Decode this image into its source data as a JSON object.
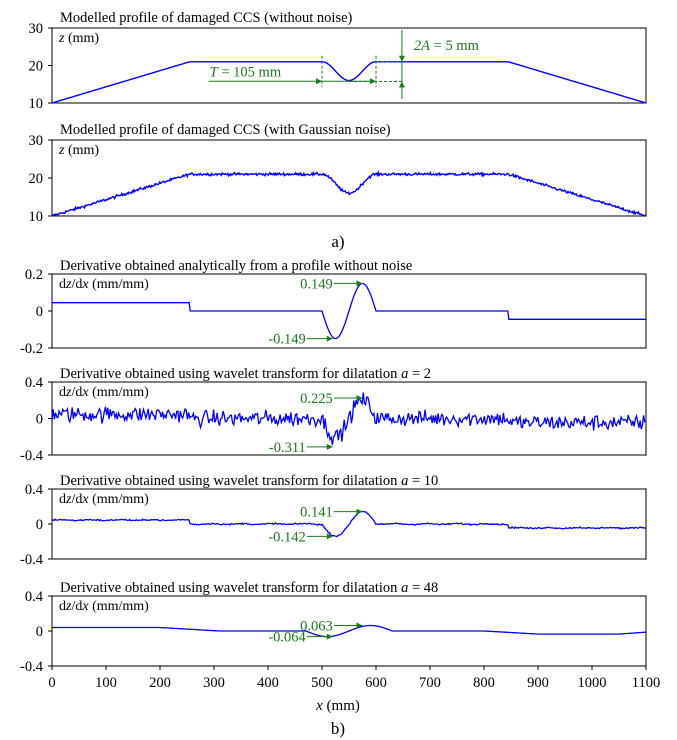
{
  "colors": {
    "curve": "#0000FF",
    "annotation": "#1A7A1A",
    "frame": "#000000"
  },
  "panel_labels": {
    "a": "a)",
    "b": "b)"
  },
  "shared_x_axis": {
    "label_italic": "x",
    "label_unit": " (mm)",
    "range": [
      0,
      1100
    ],
    "ticks": [
      "0",
      "100",
      "200",
      "300",
      "400",
      "500",
      "600",
      "700",
      "800",
      "900",
      "1000",
      "1100"
    ]
  },
  "chart_data": [
    {
      "type": "line",
      "title": "Modelled profile of damaged CCS (without noise)",
      "ylabel_italic": "z",
      "ylabel_unit": " (mm)",
      "ylim": [
        10,
        30
      ],
      "yticks": [
        "10",
        "20",
        "30"
      ],
      "xlim": [
        0,
        1100
      ],
      "noise": 0,
      "series": [
        {
          "values_kind": "profile",
          "x": [
            0,
            255,
            500,
            550,
            600,
            845,
            1100
          ],
          "y": [
            10,
            21,
            21,
            16,
            21,
            21,
            10
          ]
        }
      ],
      "annotations": [
        {
          "italic": "T",
          "text": " = 105 mm"
        },
        {
          "italic": "2A",
          "text": " = 5 mm"
        }
      ]
    },
    {
      "type": "line",
      "title": "Modelled profile of damaged CCS (with Gaussian noise)",
      "ylabel_italic": "z",
      "ylabel_unit": " (mm)",
      "ylim": [
        10,
        30
      ],
      "yticks": [
        "10",
        "20",
        "30"
      ],
      "xlim": [
        0,
        1100
      ],
      "noise": 0.35,
      "series": [
        {
          "values_kind": "profile",
          "x": [
            0,
            255,
            500,
            550,
            600,
            845,
            1100
          ],
          "y": [
            10,
            21,
            21,
            16,
            21,
            21,
            10
          ]
        }
      ]
    },
    {
      "type": "line",
      "title": "Derivative obtained analytically from a profile without noise",
      "ylabel": "dz/dx (mm/mm)",
      "ylim": [
        -0.2,
        0.2
      ],
      "yticks": [
        "0.2",
        "0",
        "-0.2"
      ],
      "xlim": [
        0,
        1100
      ],
      "derivative": {
        "slope_left": 0.045,
        "slope_right": -0.045,
        "peak": 0.149,
        "trough": -0.149,
        "noise": 0
      },
      "annotations": [
        {
          "text": "0.149",
          "x": 578,
          "y": 0.149
        },
        {
          "text": "-0.149",
          "x": 522,
          "y": -0.149
        }
      ]
    },
    {
      "type": "line",
      "title": "Derivative obtained using wavelet transform for dilatation ",
      "title_italic": "a",
      "title_suffix": " = 2",
      "ylabel": "dz/dx (mm/mm)",
      "ylim": [
        -0.4,
        0.4
      ],
      "yticks": [
        "0.4",
        "0",
        "-0.4"
      ],
      "xlim": [
        0,
        1100
      ],
      "derivative": {
        "slope_left": 0.045,
        "slope_right": -0.045,
        "peak": 0.2,
        "trough": -0.2,
        "noise": 0.085
      },
      "annotations": [
        {
          "text": "0.225",
          "x": 576,
          "y": 0.225
        },
        {
          "text": "-0.311",
          "x": 524,
          "y": -0.311
        }
      ]
    },
    {
      "type": "line",
      "title": "Derivative obtained using wavelet transform for dilatation ",
      "title_italic": "a",
      "title_suffix": " = 10",
      "ylabel": "dz/dx (mm/mm)",
      "ylim": [
        -0.4,
        0.4
      ],
      "yticks": [
        "0.4",
        "0",
        "-0.4"
      ],
      "xlim": [
        0,
        1100
      ],
      "derivative": {
        "slope_left": 0.045,
        "slope_right": -0.045,
        "peak": 0.141,
        "trough": -0.142,
        "noise": 0.008
      },
      "annotations": [
        {
          "text": "0.141",
          "x": 578,
          "y": 0.141
        },
        {
          "text": "-0.142",
          "x": 522,
          "y": -0.142
        }
      ]
    },
    {
      "type": "line",
      "title": "Derivative obtained using wavelet transform for dilatation ",
      "title_italic": "a",
      "title_suffix": " = 48",
      "ylabel": "dz/dx (mm/mm)",
      "ylim": [
        -0.4,
        0.4
      ],
      "yticks": [
        "0.4",
        "0",
        "-0.4"
      ],
      "xlim": [
        0,
        1100
      ],
      "derivative": {
        "slope_left": 0.04,
        "slope_right": -0.035,
        "peak": 0.063,
        "trough": -0.064,
        "noise": 0,
        "smooth": true
      },
      "annotations": [
        {
          "text": "0.063",
          "x": 578,
          "y": 0.063
        },
        {
          "text": "-0.064",
          "x": 522,
          "y": -0.064
        }
      ]
    }
  ]
}
